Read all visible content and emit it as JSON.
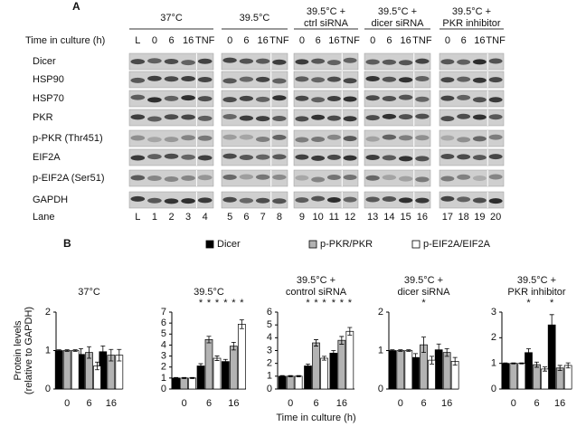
{
  "panel_a": {
    "label": "A",
    "time_label": "Time in culture (h)",
    "lane_label": "Lane",
    "rows": [
      "Dicer",
      "HSP90",
      "HSP70",
      "PKR",
      "p-PKR (Thr451)",
      "EIF2A",
      "p-EIF2A (Ser51)",
      "GAPDH"
    ],
    "groups": [
      {
        "header": [
          "37°C"
        ],
        "columns": [
          "L",
          "0",
          "6",
          "16",
          "TNF"
        ],
        "lanes": [
          "L",
          "1",
          "2",
          "3",
          "4"
        ]
      },
      {
        "header": [
          "39.5°C"
        ],
        "columns": [
          "0",
          "6",
          "16",
          "TNF"
        ],
        "lanes": [
          "5",
          "6",
          "7",
          "8"
        ]
      },
      {
        "header": [
          "39.5°C +",
          "ctrl siRNA"
        ],
        "columns": [
          "0",
          "6",
          "16",
          "TNF"
        ],
        "lanes": [
          "9",
          "10",
          "11",
          "12"
        ]
      },
      {
        "header": [
          "39.5°C +",
          "dicer siRNA"
        ],
        "columns": [
          "0",
          "6",
          "16",
          "TNF"
        ],
        "lanes": [
          "13",
          "14",
          "15",
          "16"
        ]
      },
      {
        "header": [
          "39.5°C +",
          "PKR inhibitor"
        ],
        "columns": [
          "0",
          "6",
          "16",
          "TNF"
        ],
        "lanes": [
          "17",
          "18",
          "19",
          "20"
        ]
      }
    ]
  },
  "panel_b": {
    "label": "B"
  },
  "chart_data": [
    {
      "type": "bar",
      "title": [
        "37°C"
      ],
      "y_label": [
        "Protein levels",
        "(relative to GAPDH)"
      ],
      "categories": [
        "0",
        "6",
        "16"
      ],
      "ylim": [
        0,
        2
      ],
      "yticks": [
        0,
        1,
        2
      ],
      "series": [
        {
          "name": "Dicer",
          "color": "#000000",
          "values": [
            1,
            0.9,
            0.97
          ],
          "errors": [
            0.02,
            0.15,
            0.15
          ]
        },
        {
          "name": "p-PKR/PKR",
          "color": "#b3b3b3",
          "values": [
            1,
            0.95,
            0.88
          ],
          "errors": [
            0.02,
            0.15,
            0.15
          ]
        },
        {
          "name": "p-EIF2A/EIF2A",
          "color": "#ffffff",
          "values": [
            1,
            0.6,
            0.88
          ],
          "errors": [
            0.02,
            0.1,
            0.15
          ]
        }
      ],
      "annotations": []
    },
    {
      "type": "bar",
      "title": [
        "39.5°C"
      ],
      "categories": [
        "0",
        "6",
        "16"
      ],
      "ylim": [
        0,
        7
      ],
      "yticks": [
        0,
        1,
        2,
        3,
        4,
        5,
        6,
        7
      ],
      "series": [
        {
          "name": "Dicer",
          "color": "#000000",
          "values": [
            1,
            2.1,
            2.5
          ],
          "errors": [
            0.05,
            0.2,
            0.2
          ]
        },
        {
          "name": "p-PKR/PKR",
          "color": "#b3b3b3",
          "values": [
            1,
            4.5,
            3.9
          ],
          "errors": [
            0.05,
            0.3,
            0.35
          ]
        },
        {
          "name": "p-EIF2A/EIF2A",
          "color": "#ffffff",
          "values": [
            1,
            2.8,
            5.9
          ],
          "errors": [
            0.05,
            0.2,
            0.4
          ]
        }
      ],
      "annotations": [
        {
          "text": "*",
          "category": "6",
          "series": "Dicer"
        },
        {
          "text": "*",
          "category": "6",
          "series": "p-PKR/PKR"
        },
        {
          "text": "*",
          "category": "6",
          "series": "p-EIF2A/EIF2A"
        },
        {
          "text": "*",
          "category": "16",
          "series": "Dicer"
        },
        {
          "text": "*",
          "category": "16",
          "series": "p-PKR/PKR"
        },
        {
          "text": "*",
          "category": "16",
          "series": "p-EIF2A/EIF2A"
        }
      ]
    },
    {
      "type": "bar",
      "title": [
        "39.5°C +",
        "control siRNA"
      ],
      "x_label": "Time in culture (h)",
      "categories": [
        "0",
        "6",
        "16"
      ],
      "ylim": [
        0,
        6
      ],
      "yticks": [
        0,
        1,
        2,
        3,
        4,
        5,
        6
      ],
      "series": [
        {
          "name": "Dicer",
          "color": "#000000",
          "values": [
            1,
            1.8,
            2.8
          ],
          "errors": [
            0.05,
            0.15,
            0.2
          ]
        },
        {
          "name": "p-PKR/PKR",
          "color": "#b3b3b3",
          "values": [
            1,
            3.6,
            3.8
          ],
          "errors": [
            0.05,
            0.25,
            0.3
          ]
        },
        {
          "name": "p-EIF2A/EIF2A",
          "color": "#ffffff",
          "values": [
            1,
            2.4,
            4.5
          ],
          "errors": [
            0.05,
            0.15,
            0.3
          ]
        }
      ],
      "annotations": [
        {
          "text": "*",
          "category": "6",
          "series": "Dicer"
        },
        {
          "text": "*",
          "category": "6",
          "series": "p-PKR/PKR"
        },
        {
          "text": "*",
          "category": "6",
          "series": "p-EIF2A/EIF2A"
        },
        {
          "text": "*",
          "category": "16",
          "series": "Dicer"
        },
        {
          "text": "*",
          "category": "16",
          "series": "p-PKR/PKR"
        },
        {
          "text": "*",
          "category": "16",
          "series": "p-EIF2A/EIF2A"
        }
      ]
    },
    {
      "type": "bar",
      "title": [
        "39.5°C +",
        "dicer siRNA"
      ],
      "categories": [
        "0",
        "6",
        "16"
      ],
      "ylim": [
        0,
        2
      ],
      "yticks": [
        0,
        1,
        2
      ],
      "series": [
        {
          "name": "Dicer",
          "color": "#000000",
          "values": [
            1,
            0.82,
            1.02
          ],
          "errors": [
            0.02,
            0.1,
            0.15
          ]
        },
        {
          "name": "p-PKR/PKR",
          "color": "#b3b3b3",
          "values": [
            1,
            1.15,
            0.95
          ],
          "errors": [
            0.02,
            0.2,
            0.1
          ]
        },
        {
          "name": "p-EIF2A/EIF2A",
          "color": "#ffffff",
          "values": [
            1,
            0.75,
            0.72
          ],
          "errors": [
            0.02,
            0.1,
            0.1
          ]
        }
      ],
      "annotations": [
        {
          "text": "*",
          "category": "6",
          "series": "p-PKR/PKR"
        }
      ]
    },
    {
      "type": "bar",
      "title": [
        "39.5°C +",
        "PKR inhibitor"
      ],
      "categories": [
        "0",
        "6",
        "16"
      ],
      "ylim": [
        0,
        3
      ],
      "yticks": [
        0,
        1,
        2,
        3
      ],
      "series": [
        {
          "name": "Dicer",
          "color": "#000000",
          "values": [
            1,
            1.42,
            2.5
          ],
          "errors": [
            0.02,
            0.15,
            0.4
          ]
        },
        {
          "name": "p-PKR/PKR",
          "color": "#b3b3b3",
          "values": [
            1,
            0.95,
            0.82
          ],
          "errors": [
            0.02,
            0.1,
            0.1
          ]
        },
        {
          "name": "p-EIF2A/EIF2A",
          "color": "#ffffff",
          "values": [
            1,
            0.78,
            0.92
          ],
          "errors": [
            0.02,
            0.08,
            0.1
          ]
        }
      ],
      "annotations": [
        {
          "text": "*",
          "category": "6",
          "series": "Dicer"
        },
        {
          "text": "*",
          "category": "16",
          "series": "Dicer"
        }
      ]
    }
  ]
}
